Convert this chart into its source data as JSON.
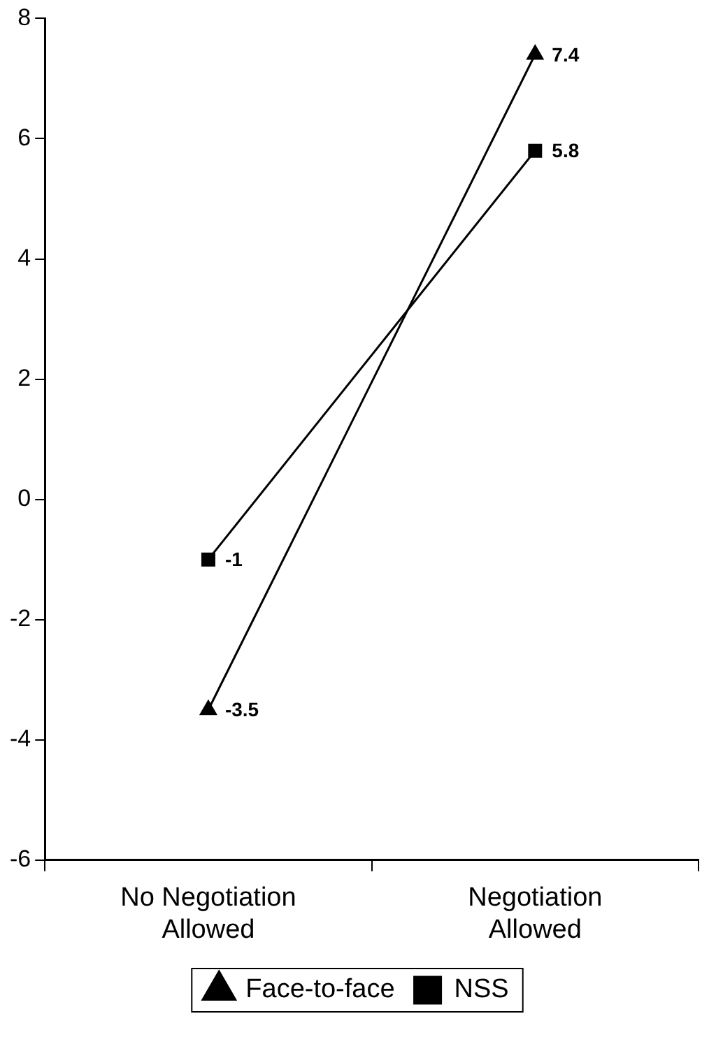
{
  "chart_data": {
    "type": "line",
    "categories": [
      "No Negotiation Allowed",
      "Negotiation Allowed"
    ],
    "series": [
      {
        "name": "Face-to-face",
        "color": "#000000",
        "values": [
          -3.5,
          7.4
        ],
        "marker": "triangle"
      },
      {
        "name": "NSS",
        "color": "#000000",
        "values": [
          -1,
          5.8
        ],
        "marker": "square"
      }
    ],
    "ylim": [
      -6,
      8
    ],
    "yticks": [
      -6,
      -4,
      -2,
      0,
      2,
      4,
      6,
      8
    ],
    "grid": false,
    "legend": "bottom",
    "data_labels": true,
    "line_style": "solid"
  }
}
